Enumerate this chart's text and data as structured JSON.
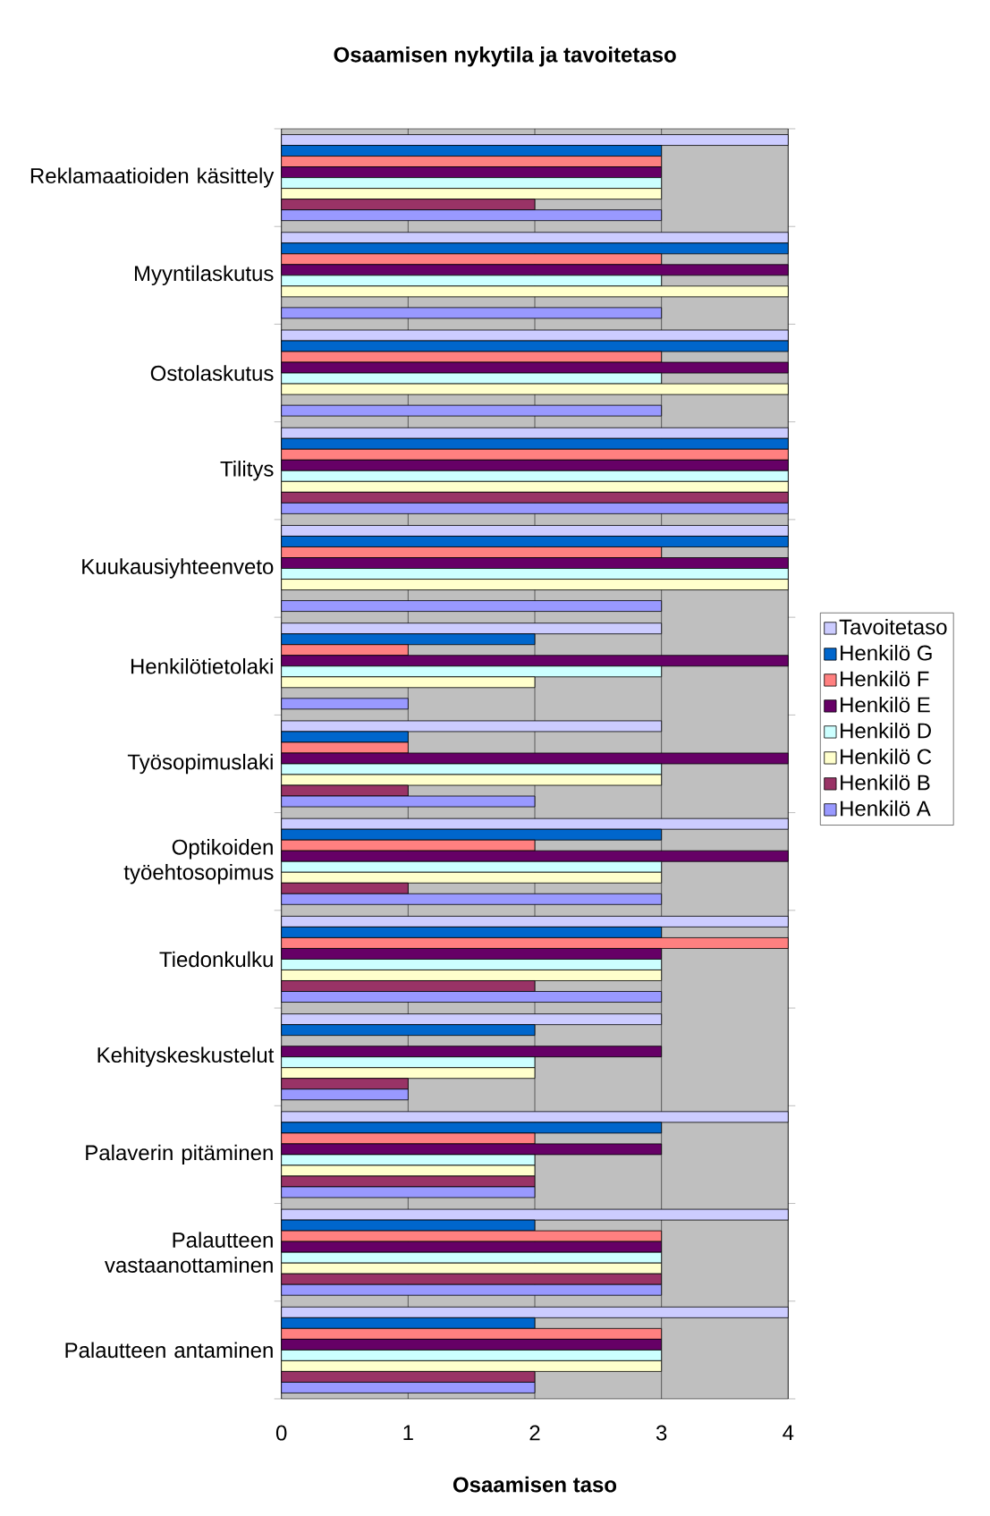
{
  "chart_data": {
    "type": "bar",
    "orientation": "horizontal",
    "title": "Osaamisen nykytila ja tavoitetaso",
    "xlabel": "Osaamisen taso",
    "categories": [
      "Reklamaatioiden käsittely",
      "Myyntilaskutus",
      "Ostolaskutus",
      "Tilitys",
      "Kuukausiyhteenveto",
      "Henkilötietolaki",
      "Työsopimuslaki",
      "Optikoiden työehtosopimus",
      "Tiedonkulku",
      "Kehityskeskustelut",
      "Palaverin pitäminen",
      "Palautteen vastaanottaminen",
      "Palautteen antaminen"
    ],
    "series": [
      {
        "name": "Tavoitetaso",
        "color": "#ccccff",
        "values": [
          4,
          4,
          4,
          4,
          4,
          3,
          3,
          4,
          4,
          3,
          4,
          4,
          4
        ]
      },
      {
        "name": "Henkilö G",
        "color": "#0066cc",
        "values": [
          3,
          4,
          4,
          4,
          4,
          2,
          1,
          3,
          3,
          2,
          3,
          2,
          2
        ]
      },
      {
        "name": "Henkilö F",
        "color": "#ff8080",
        "values": [
          3,
          3,
          3,
          4,
          3,
          1,
          1,
          2,
          4,
          null,
          2,
          3,
          3
        ]
      },
      {
        "name": "Henkilö E",
        "color": "#660066",
        "values": [
          3,
          4,
          4,
          4,
          4,
          4,
          4,
          4,
          3,
          3,
          3,
          3,
          3
        ]
      },
      {
        "name": "Henkilö D",
        "color": "#ccffff",
        "values": [
          3,
          3,
          3,
          4,
          4,
          3,
          3,
          3,
          3,
          2,
          2,
          3,
          3
        ]
      },
      {
        "name": "Henkilö C",
        "color": "#ffffcc",
        "values": [
          3,
          4,
          4,
          4,
          4,
          2,
          3,
          3,
          3,
          2,
          2,
          3,
          3
        ]
      },
      {
        "name": "Henkilö B",
        "color": "#993366",
        "values": [
          2,
          null,
          null,
          4,
          null,
          null,
          1,
          1,
          2,
          1,
          2,
          3,
          2
        ]
      },
      {
        "name": "Henkilö A",
        "color": "#9999ff",
        "values": [
          3,
          3,
          3,
          4,
          3,
          1,
          2,
          3,
          3,
          1,
          2,
          3,
          2
        ]
      }
    ],
    "xlim": [
      0,
      4
    ],
    "xticks": [
      0,
      1,
      2,
      3,
      4
    ],
    "grid": "x",
    "legend": "right"
  }
}
